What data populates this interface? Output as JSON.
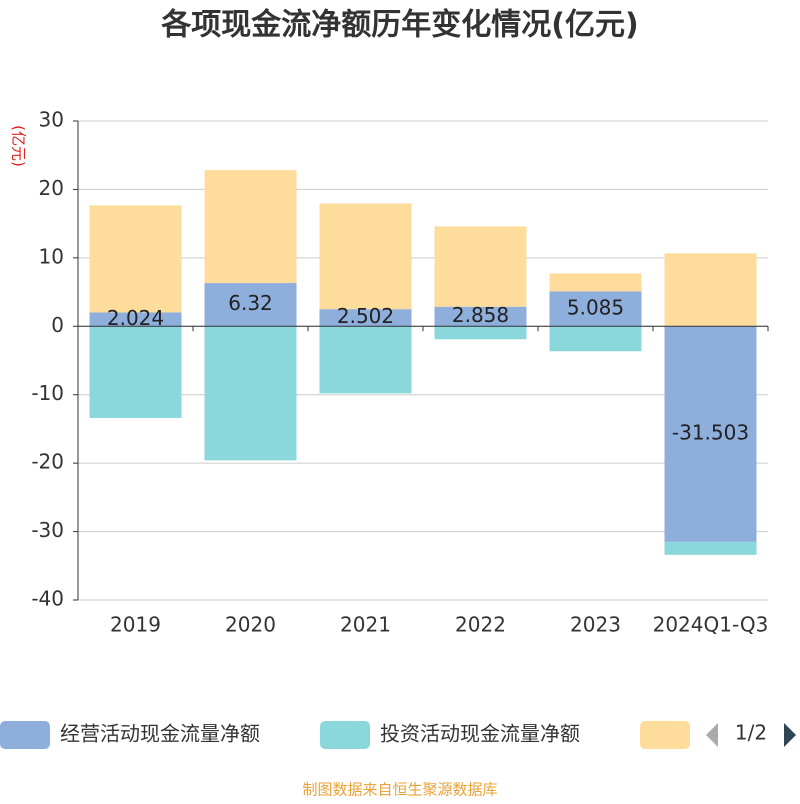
{
  "chart_data": {
    "type": "stacked_bar",
    "title": "各项现金流净额历年变化情况(亿元)",
    "y_label": "(亿元)",
    "categories": [
      "2019",
      "2020",
      "2021",
      "2022",
      "2023",
      "2024Q1-Q3"
    ],
    "series": [
      {
        "name": "经营活动现金流量净额",
        "color": "#8eaedc",
        "values": [
          2.024,
          6.32,
          2.502,
          2.858,
          5.085,
          -31.503
        ],
        "value_labels": [
          "2.024",
          "6.32",
          "2.502",
          "2.858",
          "5.085",
          "-31.503"
        ]
      },
      {
        "name": "投资活动现金流量净额",
        "color": "#8ad8dc",
        "values": [
          -13.4,
          -19.6,
          -9.8,
          -1.9,
          -3.65,
          -1.9
        ]
      },
      {
        "color": "#fedd9c",
        "values": [
          15.64,
          16.5,
          15.45,
          11.74,
          2.65,
          10.66
        ]
      }
    ],
    "ylim": [
      -40,
      30
    ],
    "yticks": [
      -40,
      -30,
      -20,
      -10,
      0,
      10,
      20,
      30
    ],
    "grid": true,
    "legend_page": "1/2",
    "source": "制图数据来自恒生聚源数据库"
  }
}
